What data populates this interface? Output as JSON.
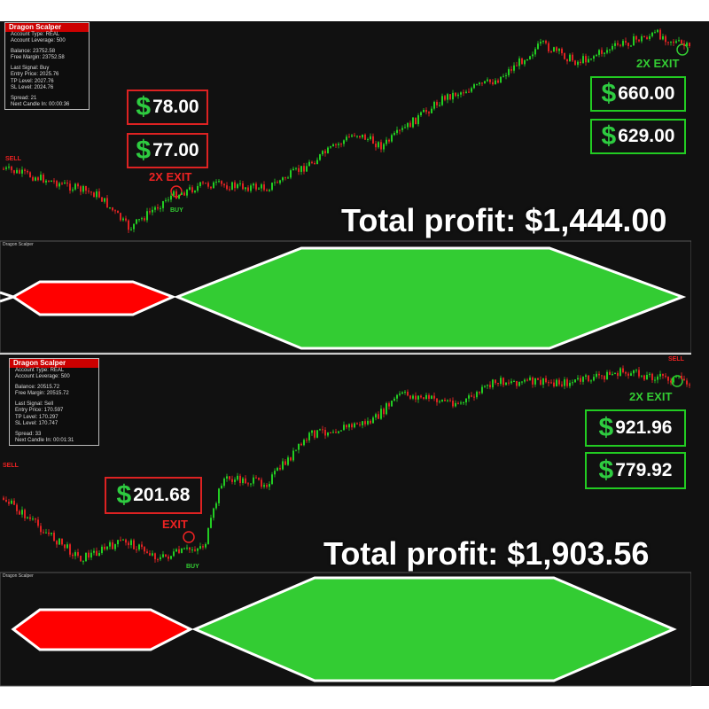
{
  "panels": [
    {
      "info_box": {
        "title": "Dragon Scalper",
        "lines": [
          "Account Type: REAL",
          "Account Leverage: 500",
          "Balance: 23752.58",
          "Free Margin: 23752.58",
          "Last Signal: Buy",
          "Entry Price: 2025.76",
          "TP Level: 2027.76",
          "SL Level: 2024.76",
          "Spread: 21",
          "Next Candle In: 00:00:36"
        ]
      },
      "signals": {
        "sell": "SELL",
        "exit": "2X EXIT",
        "buy": "BUY",
        "exit_right": "2X EXIT"
      },
      "profits_left": [
        {
          "symbol": "$",
          "amount": "78.00"
        },
        {
          "symbol": "$",
          "amount": "77.00"
        }
      ],
      "profits_right": [
        {
          "symbol": "$",
          "amount": "660.00"
        },
        {
          "symbol": "$",
          "amount": "629.00"
        }
      ],
      "total": "Total profit: $1,444.00",
      "indicator_label": "Dragon Scalper"
    },
    {
      "info_box": {
        "title": "Dragon Scalper",
        "lines": [
          "Account Type: REAL",
          "Account Leverage: 500",
          "Balance: 20515.72",
          "Free Margin: 20515.72",
          "Last Signal: Sell",
          "Entry Price: 170.597",
          "TP Level: 170.297",
          "SL Level: 170.747",
          "Spread: 33",
          "Next Candle In: 00:01:31"
        ]
      },
      "signals": {
        "sell": "SELL",
        "exit": "EXIT",
        "buy": "BUY",
        "exit_right": "2X EXIT",
        "sell_right": "SELL"
      },
      "profits_left": [
        {
          "symbol": "$",
          "amount": "201.68"
        }
      ],
      "profits_right": [
        {
          "symbol": "$",
          "amount": "921.96"
        },
        {
          "symbol": "$",
          "amount": "779.92"
        }
      ],
      "total": "Total profit: $1,903.56",
      "indicator_label": "Dragon Scalper"
    }
  ]
}
